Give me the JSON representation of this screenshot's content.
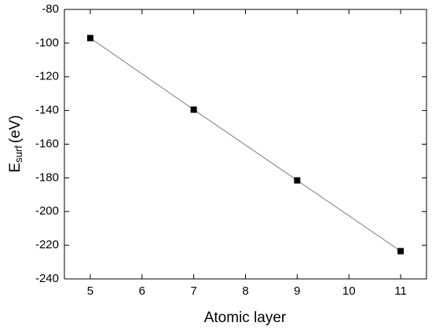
{
  "chart_data": {
    "type": "line",
    "xlabel": "Atomic layer",
    "ylabel": {
      "main": "E",
      "sub": "surf",
      "unit": "(eV)"
    },
    "x": [
      5,
      7,
      9,
      11
    ],
    "series": [
      {
        "color": "#000000",
        "line_color": "#808080",
        "marker": "square",
        "values": [
          -97,
          -139.5,
          -181.5,
          -223.5
        ]
      }
    ],
    "xlim": [
      4.5,
      11.5
    ],
    "xticks": [
      5,
      6,
      7,
      8,
      9,
      10,
      11
    ],
    "ylim": [
      -240,
      -80
    ],
    "yticks": [
      -240,
      -220,
      -200,
      -180,
      -160,
      -140,
      -120,
      -100,
      -80
    ],
    "grid": false
  }
}
